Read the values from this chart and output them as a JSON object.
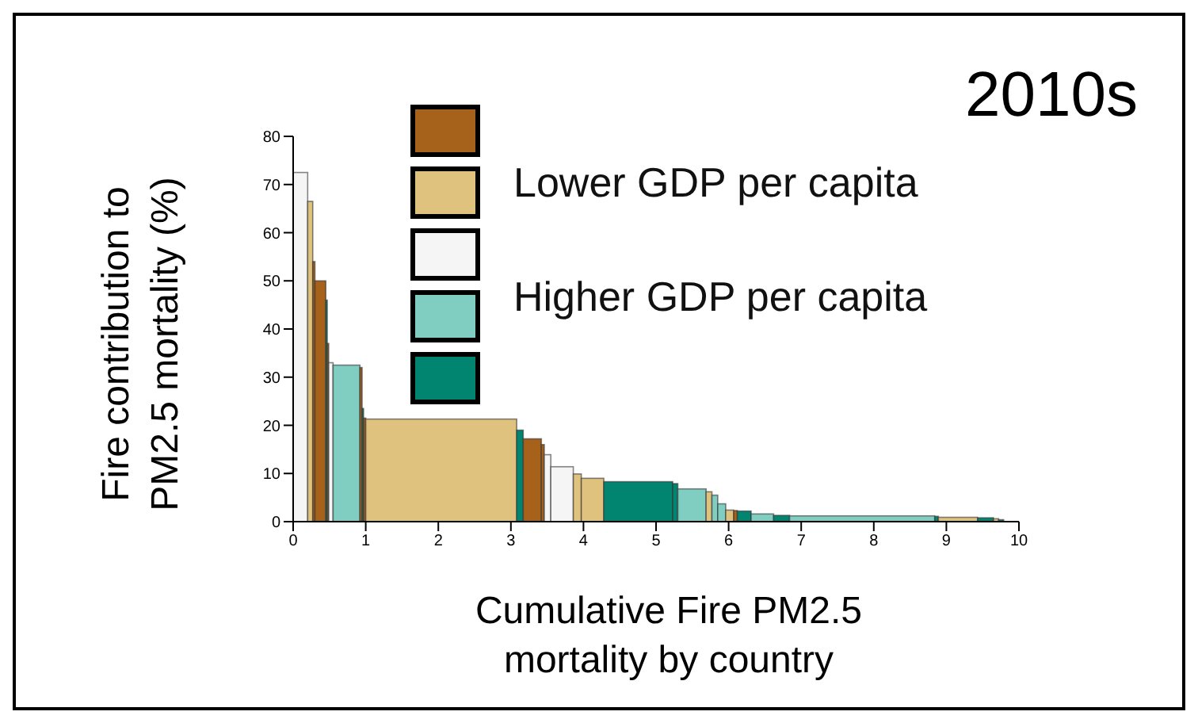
{
  "chart_data": {
    "type": "histogram",
    "title": "2010s",
    "xlabel": "Cumulative Fire PM2.5 mortality by country",
    "ylabel": "Fire contribution to PM2.5 mortality (%)",
    "bins": [
      0,
      0.2,
      0.27,
      0.3,
      0.45,
      0.47,
      0.49,
      0.55,
      0.92,
      0.95,
      0.97,
      1.0,
      3.08,
      3.17,
      3.42,
      3.46,
      3.55,
      3.86,
      3.97,
      4.28,
      5.23,
      5.3,
      5.69,
      5.77,
      5.85,
      5.96,
      6.07,
      6.12,
      6.31,
      6.62,
      6.84,
      8.84,
      8.89,
      9.43,
      9.65,
      9.72,
      9.79
    ],
    "series": [
      {
        "color": "#a6611a",
        "values": [
          null,
          null,
          54,
          50,
          null,
          37,
          null,
          null,
          32,
          null,
          21.5,
          null,
          null,
          17.2,
          16,
          null,
          null,
          null,
          null,
          null,
          null,
          null,
          null,
          null,
          null,
          null,
          2.3,
          null,
          null,
          null,
          null,
          null,
          null,
          null,
          null,
          null
        ]
      },
      {
        "color": "#dfc27d",
        "values": [
          null,
          66.5,
          null,
          null,
          null,
          null,
          null,
          null,
          null,
          null,
          null,
          21.3,
          null,
          null,
          null,
          null,
          null,
          9.9,
          9,
          null,
          null,
          null,
          6.2,
          null,
          null,
          2.4,
          null,
          null,
          null,
          null,
          null,
          null,
          0.9,
          null,
          0.6,
          null
        ]
      },
      {
        "color": "#f5f5f5",
        "values": [
          72.5,
          null,
          null,
          null,
          null,
          null,
          33,
          null,
          null,
          null,
          null,
          null,
          null,
          null,
          null,
          13.9,
          11.4,
          null,
          null,
          null,
          null,
          null,
          null,
          null,
          null,
          null,
          null,
          null,
          null,
          null,
          null,
          null,
          null,
          null,
          null,
          null
        ]
      },
      {
        "color": "#80cdc1",
        "values": [
          null,
          null,
          null,
          null,
          null,
          null,
          null,
          32.5,
          null,
          null,
          null,
          null,
          null,
          null,
          null,
          null,
          null,
          null,
          null,
          null,
          null,
          6.8,
          null,
          5.5,
          3.7,
          null,
          null,
          null,
          1.6,
          null,
          1.2,
          null,
          null,
          null,
          null,
          null
        ]
      },
      {
        "color": "#018571",
        "values": [
          null,
          null,
          null,
          null,
          46,
          null,
          null,
          null,
          null,
          23.5,
          null,
          null,
          19,
          null,
          null,
          null,
          null,
          null,
          null,
          8.3,
          7.9,
          null,
          null,
          null,
          null,
          null,
          null,
          2.2,
          null,
          1.3,
          null,
          1.1,
          null,
          0.8,
          null,
          0.4
        ]
      }
    ],
    "annotations": [
      "Lower GDP per capita",
      "Higher GDP per capita"
    ],
    "xlim": [
      0,
      10
    ],
    "xticks": [
      0,
      1,
      2,
      3,
      4,
      5,
      6,
      7,
      8,
      9,
      10
    ],
    "ylim": [
      0,
      80
    ],
    "yticks": [
      0,
      10,
      20,
      30,
      40,
      50,
      60,
      70,
      80
    ],
    "grid": false
  }
}
